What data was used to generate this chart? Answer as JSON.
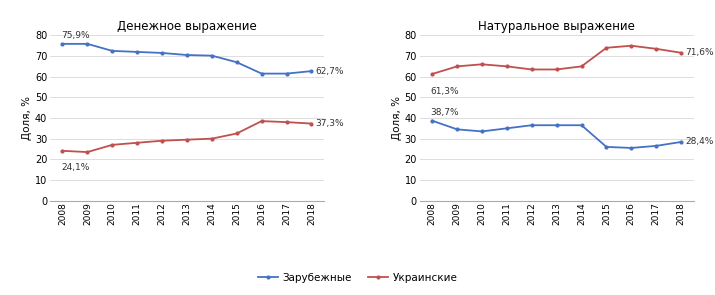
{
  "years": [
    2008,
    2009,
    2010,
    2011,
    2012,
    2013,
    2014,
    2015,
    2016,
    2017,
    2018
  ],
  "monetary_foreign": [
    75.9,
    75.9,
    72.5,
    72.0,
    71.5,
    70.5,
    70.2,
    67.0,
    61.5,
    61.5,
    62.7
  ],
  "monetary_ukraine": [
    24.1,
    23.5,
    27.0,
    28.0,
    29.0,
    29.5,
    30.0,
    32.5,
    38.5,
    38.0,
    37.3
  ],
  "natural_foreign": [
    38.7,
    34.5,
    33.5,
    35.0,
    36.5,
    36.5,
    36.5,
    26.0,
    25.5,
    26.5,
    28.4
  ],
  "natural_ukraine": [
    61.3,
    65.0,
    66.0,
    65.0,
    63.5,
    63.5,
    65.0,
    74.0,
    75.0,
    73.5,
    71.6
  ],
  "color_foreign": "#4472C4",
  "color_ukraine": "#C0504D",
  "title_monetary": "Денежное выражение",
  "title_natural": "Натуральное выражение",
  "ylabel": "Доля, %",
  "legend_foreign": "Зарубежные",
  "legend_ukraine": "Украинские",
  "ylim": [
    0,
    80
  ],
  "yticks": [
    0,
    10,
    20,
    30,
    40,
    50,
    60,
    70,
    80
  ],
  "annotation_monetary_foreign_start": "75,9%",
  "annotation_monetary_foreign_end": "62,7%",
  "annotation_monetary_ukraine_start": "24,1%",
  "annotation_monetary_ukraine_end": "37,3%",
  "annotation_natural_foreign_start": "38,7%",
  "annotation_natural_foreign_end": "28,4%",
  "annotation_natural_ukraine_start": "61,3%",
  "annotation_natural_ukraine_end": "71,6%",
  "figsize": [
    7.15,
    2.95
  ],
  "dpi": 100
}
